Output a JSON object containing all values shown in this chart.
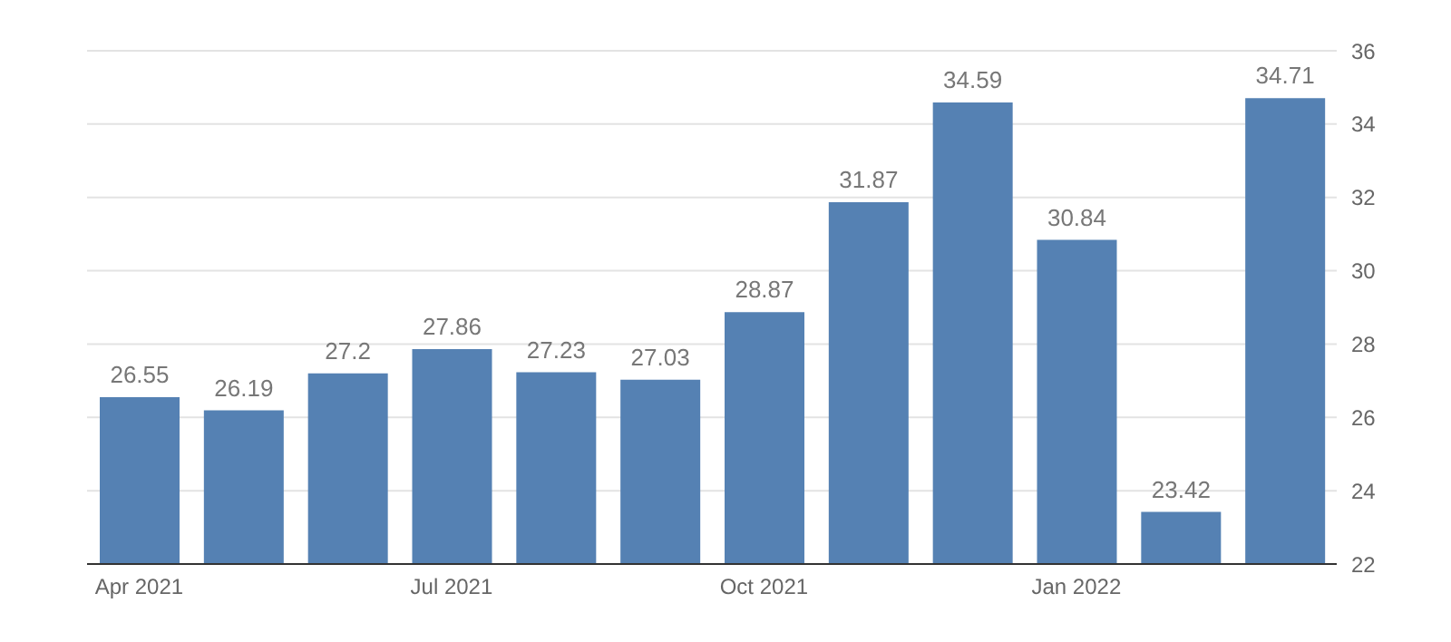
{
  "chart_data": {
    "type": "bar",
    "categories": [
      "Apr 2021",
      null,
      null,
      "Jul 2021",
      null,
      null,
      "Oct 2021",
      null,
      null,
      "Jan 2022",
      null,
      null
    ],
    "values": [
      26.55,
      26.19,
      27.2,
      27.86,
      27.23,
      27.03,
      28.87,
      31.87,
      34.59,
      30.84,
      23.42,
      34.71
    ],
    "color": "#5581b3",
    "ylim": [
      22,
      36
    ],
    "yticks": [
      22,
      24,
      26,
      28,
      30,
      32,
      34,
      36
    ],
    "grid": "y",
    "data_labels": true
  }
}
